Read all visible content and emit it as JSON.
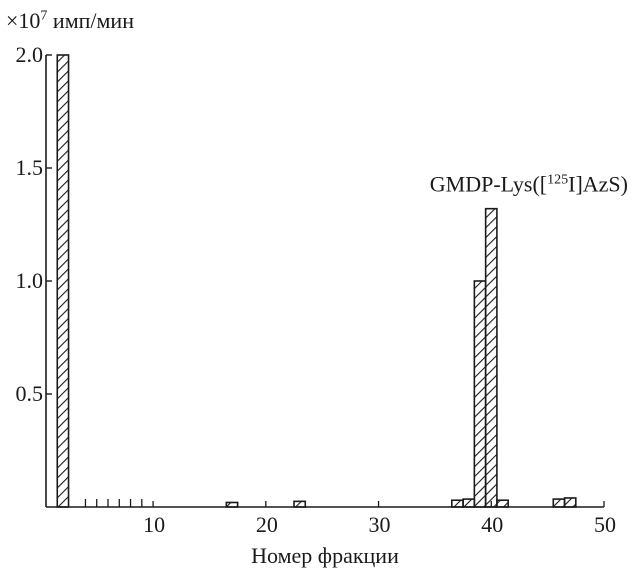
{
  "chart_data": {
    "type": "bar",
    "ylabel_prefix": "×10",
    "ylabel_exponent": "7",
    "ylabel_unit": "имп/мин",
    "xlabel": "Номер фракции",
    "xlim": [
      0,
      50
    ],
    "ylim": [
      0,
      2.0
    ],
    "x_ticks": [
      10,
      20,
      30,
      40,
      50
    ],
    "y_ticks": [
      0.5,
      1.0,
      1.5,
      2.0
    ],
    "y_tick_labels": [
      "0.5",
      "1.0",
      "1.5",
      "2.0"
    ],
    "grid": false,
    "bar_width": 1,
    "bars": [
      {
        "x": 2,
        "value": 2.0
      },
      {
        "x": 17,
        "value": 0.02
      },
      {
        "x": 23,
        "value": 0.025
      },
      {
        "x": 37,
        "value": 0.03
      },
      {
        "x": 38,
        "value": 0.035
      },
      {
        "x": 39,
        "value": 1.0
      },
      {
        "x": 40,
        "value": 1.32
      },
      {
        "x": 41,
        "value": 0.03
      },
      {
        "x": 46,
        "value": 0.035
      },
      {
        "x": 47,
        "value": 0.04
      }
    ],
    "annotation": {
      "prefix": "GMDP-Lys([",
      "sup": "125",
      "suffix": "I]AzS)",
      "x": 40,
      "y": 1.32
    }
  }
}
